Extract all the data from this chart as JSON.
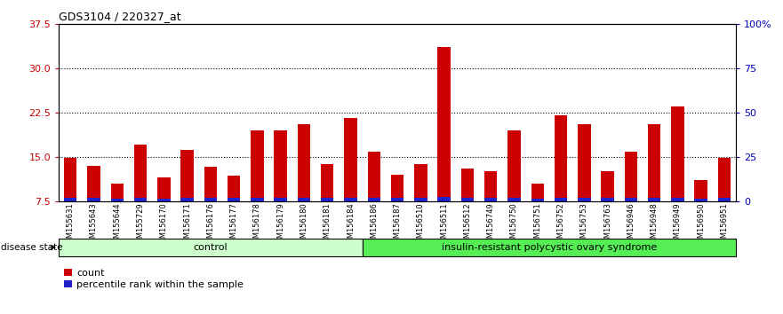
{
  "title": "GDS3104 / 220327_at",
  "samples": [
    "GSM155631",
    "GSM155643",
    "GSM155644",
    "GSM155729",
    "GSM156170",
    "GSM156171",
    "GSM156176",
    "GSM156177",
    "GSM156178",
    "GSM156179",
    "GSM156180",
    "GSM156181",
    "GSM156184",
    "GSM156186",
    "GSM156187",
    "GSM156510",
    "GSM156511",
    "GSM156512",
    "GSM156749",
    "GSM156750",
    "GSM156751",
    "GSM156752",
    "GSM156753",
    "GSM156763",
    "GSM156946",
    "GSM156948",
    "GSM156949",
    "GSM156950",
    "GSM156951"
  ],
  "count_values": [
    14.8,
    13.5,
    10.5,
    17.0,
    11.5,
    16.2,
    13.3,
    11.8,
    19.5,
    19.5,
    20.5,
    13.8,
    21.5,
    15.8,
    12.0,
    13.8,
    33.5,
    13.0,
    12.5,
    19.5,
    10.5,
    22.0,
    20.5,
    12.5,
    15.8,
    20.5,
    23.5,
    11.0,
    14.8
  ],
  "blue_bar_heights": [
    0.55,
    0.55,
    0.45,
    0.55,
    0.42,
    0.55,
    0.5,
    0.46,
    0.55,
    0.55,
    0.58,
    0.51,
    0.58,
    0.55,
    0.47,
    0.51,
    0.65,
    0.49,
    0.48,
    0.55,
    0.42,
    0.58,
    0.56,
    0.48,
    0.52,
    0.56,
    0.6,
    0.42,
    0.52
  ],
  "control_count": 13,
  "disease_count": 16,
  "n_total": 29,
  "ylim_left": [
    7.5,
    37.5
  ],
  "ylim_right": [
    0,
    100
  ],
  "yticks_left": [
    7.5,
    15.0,
    22.5,
    30.0,
    37.5
  ],
  "yticks_right": [
    0,
    25,
    50,
    75,
    100
  ],
  "ytick_labels_right": [
    "0",
    "25",
    "50",
    "75",
    "100%"
  ],
  "bar_color_red": "#CC0000",
  "bar_color_blue": "#2222CC",
  "control_bg": "#CCFFCC",
  "disease_bg": "#55EE55",
  "plot_bg": "#FFFFFF",
  "grid_color": "#000000",
  "left_label_color": "#CC0000",
  "right_label_color": "#0000BB",
  "bar_width": 0.55
}
